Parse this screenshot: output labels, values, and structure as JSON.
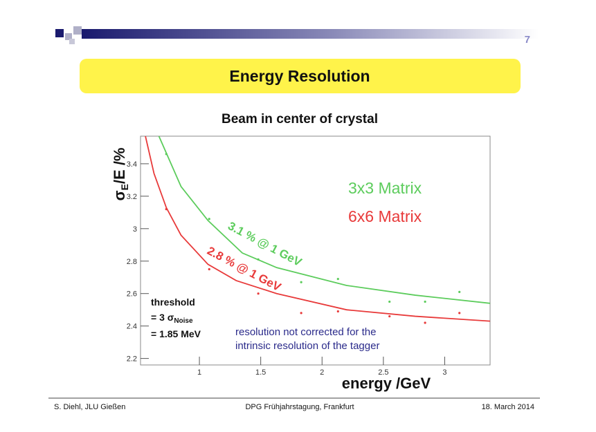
{
  "slide": {
    "number": "7",
    "heading": "Energy Resolution",
    "footer": [
      "S. Diehl, JLU Gießen",
      "DPG Frühjahrstagung, Frankfurt",
      "18. March 2014"
    ]
  },
  "chart_data": {
    "type": "scatter",
    "title": "Beam in center of crystal",
    "xlabel": "energy /GeV",
    "ylabel": {
      "symbol": "σ",
      "sub": "E",
      "rest": "/E /%"
    },
    "xlim": [
      0.52,
      3.37
    ],
    "ylim": [
      2.16,
      3.57
    ],
    "xticks": [
      1,
      1.5,
      2,
      2.5,
      3
    ],
    "yticks": [
      2.2,
      2.4,
      2.6,
      2.8,
      3,
      3.2,
      3.4
    ],
    "series": [
      {
        "name": "3x3 Matrix",
        "color": "#5ccc5c",
        "x": [
          0.73,
          1.08,
          1.48,
          1.83,
          2.13,
          2.55,
          2.84,
          3.12
        ],
        "values": [
          3.46,
          3.06,
          2.81,
          2.67,
          2.69,
          2.55,
          2.55,
          2.61
        ]
      },
      {
        "name": "6x6 Matrix",
        "color": "#e83a3a",
        "x": [
          0.73,
          1.08,
          1.48,
          1.83,
          2.13,
          2.55,
          2.84,
          3.12
        ],
        "values": [
          3.12,
          2.75,
          2.6,
          2.48,
          2.49,
          2.46,
          2.42,
          2.48
        ]
      }
    ],
    "fits": [
      {
        "color": "#5ccc5c",
        "x": [
          0.67,
          0.85,
          1.07,
          1.35,
          1.63,
          2.2,
          2.76,
          3.37
        ],
        "values": [
          3.57,
          3.26,
          3.05,
          2.85,
          2.76,
          2.65,
          2.59,
          2.54
        ]
      },
      {
        "color": "#e83a3a",
        "x": [
          0.56,
          0.63,
          0.73,
          0.85,
          1.07,
          1.3,
          1.63,
          2.2,
          2.76,
          3.37
        ],
        "values": [
          3.57,
          3.34,
          3.13,
          2.96,
          2.78,
          2.68,
          2.6,
          2.5,
          2.46,
          2.43
        ]
      }
    ],
    "annotations": {
      "fit_3x3": "3.1 % @ 1 GeV",
      "fit_6x6": "2.8 % @ 1 GeV",
      "threshold": {
        "line1": "threshold",
        "line2": "= 3 σ",
        "line2_sub": "Noise",
        "line3": "= 1.85 MeV"
      },
      "note": [
        "resolution not corrected for the",
        "intrinsic resolution of the tagger"
      ]
    }
  }
}
